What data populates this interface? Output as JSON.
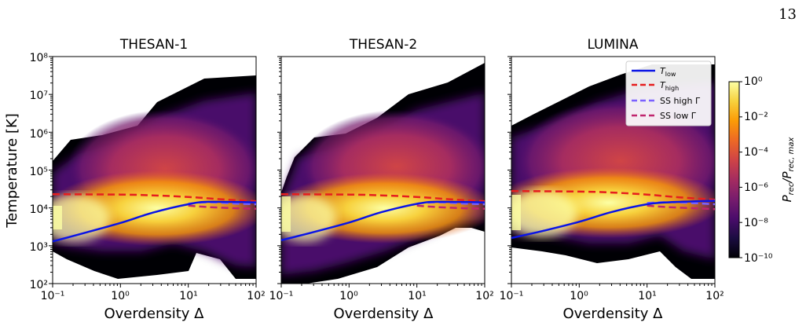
{
  "page_number": "13",
  "colors": {
    "t_low": "#0a14e6",
    "t_high": "#e61e1e",
    "ss_high": "#7b61ff",
    "ss_low": "#c0266e",
    "colormap": [
      "#000004",
      "#1b0c41",
      "#4a0c6b",
      "#781c6d",
      "#a52c60",
      "#cf4446",
      "#ed6925",
      "#fb9b06",
      "#f7d13d",
      "#fcffa4"
    ]
  },
  "chart_data": {
    "type": "heatmap",
    "xscale": "log",
    "yscale": "log",
    "xlim": [
      0.1,
      100
    ],
    "ylim": [
      100,
      100000000
    ],
    "xlabel": "Overdensity Δ",
    "ylabel": "Temperature [K]",
    "x_tick_labels": [
      "10⁻¹",
      "10⁰",
      "10¹",
      "10²"
    ],
    "y_tick_labels": [
      "10²",
      "10³",
      "10⁴",
      "10⁵",
      "10⁶",
      "10⁷",
      "10⁸"
    ],
    "panels": [
      {
        "title": "THESAN-1",
        "t_low": {
          "x": [
            0.1,
            0.3,
            1,
            3,
            10,
            20,
            100
          ],
          "y": [
            1300,
            2200,
            4000,
            7500,
            12500,
            14500,
            14000
          ]
        },
        "t_high": {
          "x": [
            0.1,
            1,
            3,
            10,
            30,
            100
          ],
          "y": [
            23000,
            22500,
            21500,
            19500,
            17000,
            15000
          ]
        },
        "ss_high": {
          "x": [
            10,
            20,
            50,
            100
          ],
          "y": [
            13000,
            14000,
            13000,
            12500
          ]
        },
        "ss_low": {
          "x": [
            10,
            20,
            50,
            100
          ],
          "y": [
            11500,
            10500,
            9800,
            9500
          ]
        }
      },
      {
        "title": "THESAN-2",
        "t_low": {
          "x": [
            0.1,
            0.3,
            1,
            3,
            10,
            20,
            100
          ],
          "y": [
            1400,
            2300,
            4100,
            7700,
            12800,
            14500,
            14000
          ]
        },
        "t_high": {
          "x": [
            0.1,
            1,
            3,
            10,
            30,
            100
          ],
          "y": [
            23000,
            22500,
            21500,
            19500,
            17000,
            15000
          ]
        },
        "ss_high": {
          "x": [
            10,
            20,
            50,
            100
          ],
          "y": [
            13000,
            14000,
            13000,
            12500
          ]
        },
        "ss_low": {
          "x": [
            10,
            20,
            50,
            100
          ],
          "y": [
            11500,
            10500,
            9800,
            9500
          ]
        }
      },
      {
        "title": "LUMINA",
        "t_low": {
          "x": [
            0.1,
            0.3,
            1,
            3,
            10,
            20,
            100
          ],
          "y": [
            1600,
            2500,
            4300,
            7800,
            12500,
            14000,
            15500
          ]
        },
        "t_high": {
          "x": [
            0.1,
            1,
            3,
            10,
            30,
            100
          ],
          "y": [
            28000,
            27000,
            25500,
            22500,
            19000,
            16500
          ]
        },
        "ss_high": {
          "x": [
            10,
            20,
            50,
            100
          ],
          "y": [
            13500,
            14200,
            13300,
            12500
          ]
        },
        "ss_low": {
          "x": [
            10,
            20,
            50,
            100
          ],
          "y": [
            11500,
            10500,
            9800,
            9300
          ]
        }
      }
    ],
    "legend": {
      "placement": "top-right of third panel",
      "entries": [
        {
          "key": "t_low",
          "label_main": "T",
          "label_sub": "low",
          "style": "solid"
        },
        {
          "key": "t_high",
          "label_main": "T",
          "label_sub": "high",
          "style": "dashed"
        },
        {
          "key": "ss_high",
          "label": "SS high Γ",
          "style": "dashed"
        },
        {
          "key": "ss_low",
          "label": "SS low Γ",
          "style": "dashed"
        }
      ]
    },
    "colorbar": {
      "scale": "log",
      "range": [
        1e-10,
        1
      ],
      "label_main": "P",
      "label_sub1": "rec",
      "label_mid": "/P",
      "label_sub2": "rec, max",
      "tick_labels": [
        "10⁰",
        "10⁻²",
        "10⁻⁴",
        "10⁻⁶",
        "10⁻⁸",
        "10⁻¹⁰"
      ]
    }
  }
}
